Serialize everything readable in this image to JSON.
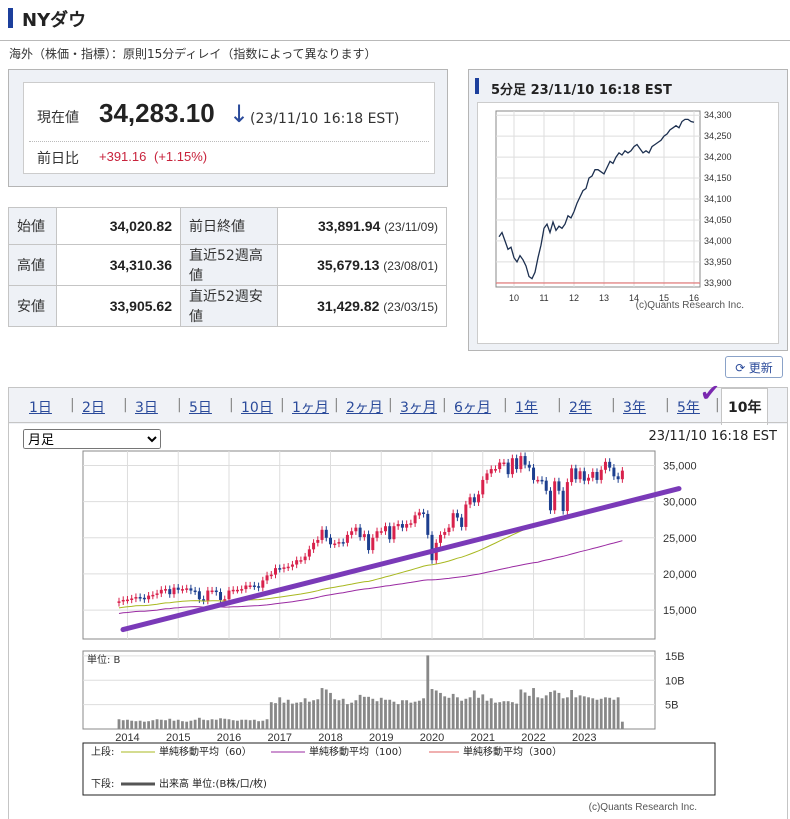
{
  "header": {
    "title": "NYダウ"
  },
  "note": "海外（株価・指標）：原則15分ディレイ（指数によって異なります）",
  "quote": {
    "current_label": "現在値",
    "current_value": "34,283.10",
    "arrow": "↓",
    "timestamp": "(23/11/10 16:18 EST)",
    "change_label": "前日比",
    "change_value": "+391.16",
    "change_pct": "(+1.15%)"
  },
  "ohlc": {
    "open_label": "始値",
    "open_value": "34,020.82",
    "high_label": "高値",
    "high_value": "34,310.36",
    "low_label": "安値",
    "low_value": "33,905.62",
    "prev_close_label": "前日終値",
    "prev_close_value": "33,891.94",
    "prev_close_date": "(23/11/09)",
    "high52_label": "直近52週高値",
    "high52_value": "35,679.13",
    "high52_date": "(23/08/01)",
    "low52_label": "直近52週安値",
    "low52_value": "31,429.82",
    "low52_date": "(23/03/15)"
  },
  "mini_chart": {
    "title": "5分足 23/11/10 16:18 EST",
    "credit": "(c)Quants Research Inc."
  },
  "refresh_label": "更新",
  "tabs": [
    "1日",
    "2日",
    "3日",
    "5日",
    "10日",
    "1ヶ月",
    "2ヶ月",
    "3ヶ月",
    "6ヶ月",
    "1年",
    "2年",
    "3年",
    "5年",
    "10年"
  ],
  "active_tab": "10年",
  "period_select": "月足",
  "main_timestamp": "23/11/10 16:18 EST",
  "main_credit": "(c)Quants Research Inc.",
  "volume_unit": "単位: B",
  "legend": {
    "upper_label": "上段:",
    "ma60": "単純移動平均（60）",
    "ma100": "単純移動平均（100）",
    "ma300": "単純移動平均（300）",
    "lower_label": "下段:",
    "volume": "出来高 単位:(B株/口/枚)"
  },
  "colors": {
    "up": "#d8224c",
    "down": "#1d3f8f",
    "ma60": "#a8b820",
    "ma100": "#9a2aa2",
    "ma300": "#e06060",
    "trend": "#7a3ab8",
    "vol": "#888888"
  },
  "chart_data": [
    {
      "type": "line",
      "title": "5分足 23/11/10 16:18 EST",
      "x_ticks": [
        "10",
        "11",
        "12",
        "13",
        "14",
        "15",
        "16"
      ],
      "y_ticks": [
        "34,300",
        "34,250",
        "34,200",
        "34,150",
        "34,100",
        "34,050",
        "34,000",
        "33,950",
        "33,900"
      ],
      "ylim": [
        33890,
        34310
      ],
      "x": [
        9.5,
        9.6,
        9.7,
        9.8,
        9.9,
        10.0,
        10.1,
        10.2,
        10.3,
        10.4,
        10.5,
        10.6,
        10.7,
        10.8,
        10.9,
        11.0,
        11.1,
        11.2,
        11.3,
        11.4,
        11.5,
        11.6,
        11.7,
        11.8,
        11.9,
        12.0,
        12.1,
        12.2,
        12.3,
        12.4,
        12.5,
        12.6,
        12.7,
        12.8,
        12.9,
        13.0,
        13.1,
        13.2,
        13.3,
        13.4,
        13.5,
        13.6,
        13.7,
        13.8,
        13.9,
        14.0,
        14.1,
        14.2,
        14.3,
        14.4,
        14.5,
        14.6,
        14.7,
        14.8,
        14.9,
        15.0,
        15.1,
        15.2,
        15.3,
        15.4,
        15.5,
        15.6,
        15.7,
        15.8,
        15.9,
        16.0
      ],
      "values": [
        34010,
        34020,
        34000,
        33980,
        33985,
        33960,
        33950,
        33965,
        33955,
        33940,
        33915,
        33910,
        33925,
        33960,
        33990,
        34030,
        34040,
        34020,
        34045,
        34025,
        34035,
        34030,
        34040,
        34060,
        34055,
        34070,
        34090,
        34105,
        34120,
        34125,
        34150,
        34155,
        34170,
        34170,
        34165,
        34160,
        34175,
        34190,
        34185,
        34200,
        34210,
        34205,
        34215,
        34210,
        34215,
        34225,
        34230,
        34220,
        34210,
        34215,
        34210,
        34225,
        34230,
        34235,
        34240,
        34250,
        34255,
        34265,
        34270,
        34275,
        34270,
        34285,
        34290,
        34290,
        34285,
        34283
      ]
    },
    {
      "type": "bar",
      "title": "月足",
      "x_ticks": [
        "2014",
        "2015",
        "2016",
        "2017",
        "2018",
        "2019",
        "2020",
        "2021",
        "2022",
        "2023"
      ],
      "y_ticks": [
        "35,000",
        "30,000",
        "25,000",
        "20,000",
        "15,000"
      ],
      "ylim": [
        11000,
        37000
      ],
      "series": [
        {
          "name": "単純移動平均（60）"
        },
        {
          "name": "単純移動平均（100）"
        },
        {
          "name": "単純移動平均（300）"
        }
      ],
      "monthly_close": [
        16200,
        16400,
        16450,
        16600,
        16800,
        16700,
        16500,
        17000,
        17100,
        17300,
        17800,
        17900,
        17200,
        18100,
        17800,
        17900,
        18000,
        17700,
        17600,
        16500,
        16300,
        17700,
        17700,
        17500,
        16400,
        16500,
        17700,
        17800,
        17800,
        17900,
        18400,
        18400,
        18300,
        18100,
        19100,
        19800,
        19900,
        20800,
        20700,
        20900,
        21000,
        21300,
        21900,
        21900,
        22400,
        23400,
        24300,
        24700,
        26100,
        25000,
        24100,
        24200,
        24400,
        24300,
        25400,
        25900,
        26400,
        25100,
        25500,
        23300,
        25000,
        25900,
        25900,
        26600,
        24800,
        26600,
        26900,
        26400,
        26900,
        27000,
        28100,
        28500,
        28300,
        25400,
        21900,
        24300,
        25400,
        25800,
        26400,
        28400,
        27800,
        26500,
        29600,
        30600,
        29900,
        31000,
        33000,
        33900,
        34500,
        34500,
        35400,
        35400,
        33800,
        36000,
        34500,
        36300,
        35100,
        34700,
        33000,
        33000,
        32900,
        31500,
        28800,
        32800,
        31500,
        28700,
        32700,
        34600,
        33100,
        34200,
        32900,
        33300,
        34100,
        33000,
        34400,
        35500,
        34700,
        33500,
        33100,
        34283
      ],
      "vol_ticks": [
        "15B",
        "10B",
        "5B"
      ],
      "volume_B": [
        2.0,
        1.8,
        1.9,
        1.7,
        1.6,
        1.7,
        1.5,
        1.6,
        1.8,
        2.0,
        1.9,
        1.8,
        2.1,
        1.7,
        1.9,
        1.6,
        1.5,
        1.7,
        1.9,
        2.3,
        1.9,
        1.8,
        2.0,
        1.9,
        2.2,
        2.1,
        2.0,
        1.8,
        1.7,
        1.9,
        1.9,
        1.8,
        1.9,
        1.6,
        1.7,
        2.0,
        5.5,
        5.3,
        6.5,
        5.4,
        6.0,
        5.2,
        5.4,
        5.5,
        6.3,
        5.6,
        5.9,
        6.1,
        8.4,
        8.1,
        7.4,
        6.1,
        5.9,
        6.2,
        5.1,
        5.4,
        5.9,
        7.0,
        6.6,
        6.6,
        6.2,
        5.7,
        6.4,
        6.0,
        6.0,
        5.6,
        5.1,
        5.9,
        5.9,
        5.4,
        5.6,
        5.8,
        6.3,
        15.1,
        8.2,
        7.9,
        7.4,
        6.7,
        6.4,
        7.2,
        6.5,
        5.8,
        6.2,
        6.5,
        7.9,
        6.4,
        7.1,
        5.8,
        6.3,
        5.4,
        5.5,
        5.7,
        5.7,
        5.5,
        5.2,
        8.1,
        7.5,
        6.8,
        8.4,
        6.5,
        6.3,
        6.9,
        7.6,
        7.9,
        7.4,
        6.3,
        6.5,
        8.0,
        6.5,
        6.9,
        6.7,
        6.5,
        6.3,
        6.0,
        6.2,
        6.5,
        6.4,
        6.0,
        6.5,
        1.5
      ]
    }
  ]
}
